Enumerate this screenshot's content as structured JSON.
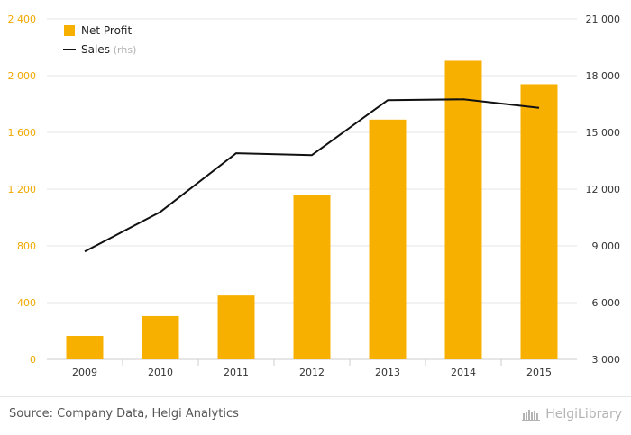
{
  "chart_data": {
    "type": "bar",
    "categories": [
      "2009",
      "2010",
      "2011",
      "2012",
      "2013",
      "2014",
      "2015"
    ],
    "series": [
      {
        "name": "Net Profit",
        "type": "bar",
        "axis": "left",
        "color": "#f8b000",
        "values": [
          165,
          305,
          450,
          1160,
          1690,
          2105,
          1940
        ]
      },
      {
        "name": "Sales",
        "type": "line",
        "axis": "right",
        "color": "#111111",
        "values": [
          8700,
          10800,
          13900,
          13800,
          16700,
          16750,
          16300
        ]
      }
    ],
    "legend": {
      "position": "top-left",
      "items": [
        {
          "label": "Net Profit",
          "suffix": ""
        },
        {
          "label": "Sales",
          "suffix": "(rhs)"
        }
      ]
    },
    "y_left": {
      "ylim": [
        0,
        2400
      ],
      "ticks": [
        0,
        400,
        800,
        1200,
        1600,
        2000,
        2400
      ],
      "tick_labels": [
        "0",
        "400",
        "800",
        "1 200",
        "1 600",
        "2 000",
        "2 400"
      ],
      "color": "#f0a800"
    },
    "y_right": {
      "ylim": [
        3000,
        21000
      ],
      "ticks": [
        3000,
        6000,
        9000,
        12000,
        15000,
        18000,
        21000
      ],
      "tick_labels": [
        "3 000",
        "6 000",
        "9 000",
        "12 000",
        "15 000",
        "18 000",
        "21 000"
      ],
      "color": "#333333"
    },
    "grid": true
  },
  "footer": {
    "source": "Source: Company Data, Helgi Analytics",
    "brand": "HelgiLibrary"
  }
}
